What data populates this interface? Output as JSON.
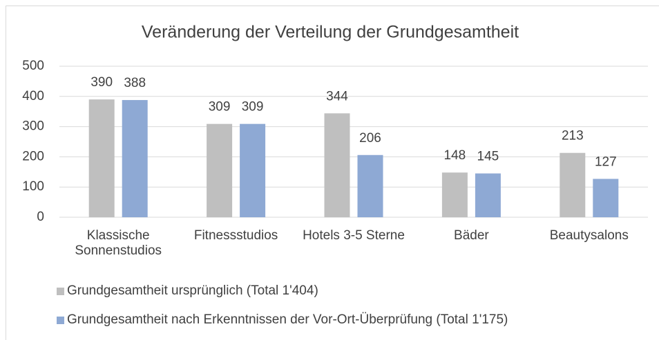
{
  "chart_data": {
    "type": "bar",
    "title": "Veränderung der Verteilung der Grundgesamtheit",
    "categories": [
      "Klassische Sonnenstudios",
      "Fitnessstudios",
      "Hotels 3-5 Sterne",
      "Bäder",
      "Beautysalons"
    ],
    "series": [
      {
        "name": "Grundgesamtheit ursprünglich (Total 1'404)",
        "color": "#bfbfbf",
        "values": [
          390,
          309,
          344,
          148,
          213
        ]
      },
      {
        "name": "Grundgesamtheit nach Erkenntnissen der Vor-Ort-Überprüfung (Total 1'175)",
        "color": "#8ea9d4",
        "values": [
          388,
          309,
          206,
          145,
          127
        ]
      }
    ],
    "ylim": [
      0,
      500
    ],
    "yticks": [
      0,
      100,
      200,
      300,
      400,
      500
    ],
    "grid": true,
    "legend": "bottom"
  }
}
